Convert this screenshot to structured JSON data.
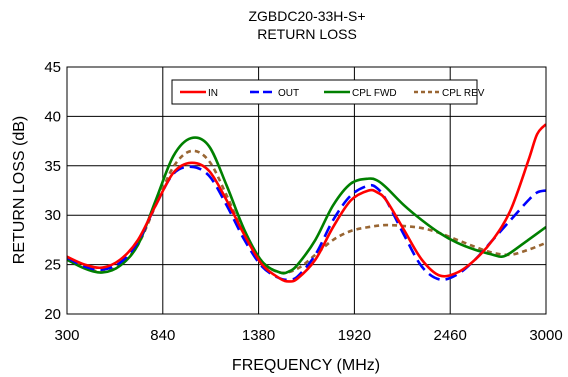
{
  "chart_data": {
    "type": "line",
    "title": "ZGBDC20-33H-S+",
    "subtitle": "RETURN LOSS",
    "xlabel": "FREQUENCY (MHz)",
    "ylabel": "RETURN LOSS (dB)",
    "xlim": [
      300,
      3000
    ],
    "ylim": [
      20,
      45
    ],
    "xticks": [
      300,
      840,
      1380,
      1920,
      2460,
      3000
    ],
    "yticks": [
      20,
      25,
      30,
      35,
      40,
      45
    ],
    "grid": true,
    "legend_position": "top-center",
    "series": [
      {
        "name": "IN",
        "color": "#ff0000",
        "dash": "solid",
        "x": [
          300,
          400,
          500,
          600,
          700,
          800,
          900,
          1000,
          1100,
          1200,
          1300,
          1400,
          1500,
          1550,
          1600,
          1700,
          1800,
          1900,
          2000,
          2050,
          2100,
          2200,
          2300,
          2400,
          2500,
          2600,
          2700,
          2800,
          2900,
          2950,
          3000
        ],
        "y": [
          25.8,
          25.0,
          24.7,
          25.5,
          27.5,
          31.0,
          34.3,
          35.3,
          34.5,
          31.5,
          28.0,
          25.0,
          23.6,
          23.3,
          23.6,
          25.5,
          28.8,
          31.5,
          32.5,
          32.3,
          31.5,
          28.5,
          25.5,
          23.9,
          24.2,
          25.5,
          27.5,
          30.5,
          35.5,
          38.2,
          39.2
        ]
      },
      {
        "name": "OUT",
        "color": "#0000ff",
        "dash": "long-dash",
        "x": [
          300,
          400,
          500,
          600,
          700,
          800,
          900,
          1000,
          1100,
          1200,
          1300,
          1400,
          1500,
          1550,
          1600,
          1700,
          1800,
          1900,
          2000,
          2050,
          2100,
          2200,
          2300,
          2400,
          2500,
          2600,
          2700,
          2800,
          2900,
          2950,
          3000
        ],
        "y": [
          25.7,
          24.8,
          24.5,
          25.2,
          27.3,
          31.0,
          34.2,
          34.9,
          34.0,
          31.0,
          27.5,
          24.8,
          23.6,
          23.5,
          23.8,
          26.0,
          29.5,
          32.0,
          33.0,
          32.7,
          31.5,
          28.0,
          24.8,
          23.5,
          24.0,
          25.5,
          27.5,
          29.5,
          31.5,
          32.3,
          32.5
        ]
      },
      {
        "name": "CPL FWD",
        "color": "#008000",
        "dash": "solid",
        "x": [
          300,
          400,
          500,
          600,
          700,
          800,
          900,
          1000,
          1100,
          1200,
          1300,
          1400,
          1500,
          1550,
          1600,
          1700,
          1800,
          1900,
          2000,
          2050,
          2100,
          2200,
          2300,
          2400,
          2500,
          2600,
          2700,
          2750,
          2800,
          2900,
          3000
        ],
        "y": [
          25.5,
          24.6,
          24.2,
          24.9,
          27.0,
          31.5,
          36.0,
          37.8,
          37.0,
          33.0,
          28.5,
          25.3,
          24.2,
          24.3,
          25.0,
          27.5,
          31.0,
          33.2,
          33.7,
          33.5,
          32.8,
          31.0,
          29.5,
          28.2,
          27.2,
          26.5,
          26.0,
          25.8,
          26.2,
          27.5,
          28.8
        ]
      },
      {
        "name": "CPL REV",
        "color": "#996633",
        "dash": "short-dash",
        "x": [
          300,
          400,
          500,
          600,
          700,
          800,
          900,
          1000,
          1100,
          1200,
          1300,
          1400,
          1500,
          1600,
          1700,
          1800,
          1900,
          2000,
          2100,
          2200,
          2300,
          2400,
          2500,
          2600,
          2700,
          2800,
          2900,
          3000
        ],
        "y": [
          25.6,
          24.7,
          24.3,
          25.0,
          27.0,
          31.0,
          34.9,
          36.5,
          35.5,
          32.0,
          28.0,
          25.3,
          24.2,
          24.6,
          26.0,
          27.5,
          28.4,
          28.8,
          29.0,
          28.9,
          28.7,
          28.2,
          27.5,
          26.8,
          26.2,
          26.0,
          26.5,
          27.2
        ]
      }
    ]
  }
}
